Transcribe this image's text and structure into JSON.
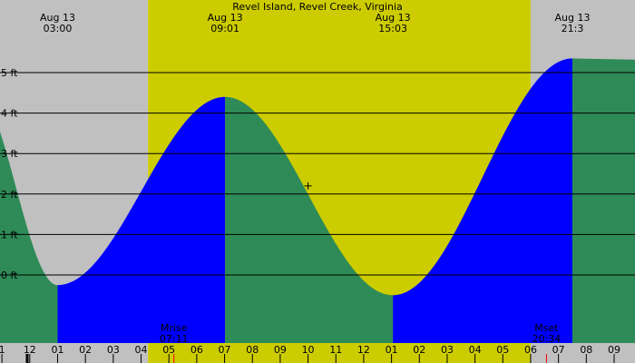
{
  "chart_data": {
    "type": "area",
    "title": "Revel Island, Revel Creek, Virginia",
    "ylim": [
      -1.0,
      5.6
    ],
    "y_ticks": [
      {
        "value": 0,
        "label": "0 ft"
      },
      {
        "value": 1,
        "label": "1 ft"
      },
      {
        "value": 2,
        "label": "2 ft"
      },
      {
        "value": 3,
        "label": "3 ft"
      },
      {
        "value": 4,
        "label": "4 ft"
      },
      {
        "value": 5,
        "label": "5 ft"
      }
    ],
    "x_range_hours": [
      0.93,
      23.75
    ],
    "extremes": [
      {
        "hour": 0.0,
        "height": 4.6,
        "kind": "high"
      },
      {
        "hour": 3.0,
        "height": -0.25,
        "kind": "low",
        "date": "Aug 13",
        "time": "03:00"
      },
      {
        "hour": 9.02,
        "height": 4.4,
        "kind": "high",
        "date": "Aug 13",
        "time": "09:01"
      },
      {
        "hour": 15.05,
        "height": -0.5,
        "kind": "low",
        "date": "Aug 13",
        "time": "15:03"
      },
      {
        "hour": 21.5,
        "height": 5.35,
        "kind": "high",
        "date": "Aug 13",
        "time": "21:3"
      }
    ],
    "day_periods": [
      {
        "start": 0.93,
        "end": 6.25,
        "kind": "night"
      },
      {
        "start": 6.25,
        "end": 20.0,
        "kind": "day"
      },
      {
        "start": 20.0,
        "end": 23.75,
        "kind": "night"
      }
    ],
    "moon_events": [
      {
        "label": "Mrise",
        "time": "07:11",
        "hour": 7.18
      },
      {
        "label": "Mset",
        "time": "20:34",
        "hour": 20.57
      }
    ],
    "current_marker": {
      "hour": 12.0,
      "height": 2.2
    },
    "x_tick_labels": [
      {
        "hour": 1,
        "label": "1"
      },
      {
        "hour": 2,
        "label": "12"
      },
      {
        "hour": 3,
        "label": "01"
      },
      {
        "hour": 4,
        "label": "02"
      },
      {
        "hour": 5,
        "label": "03"
      },
      {
        "hour": 6,
        "label": "04"
      },
      {
        "hour": 7,
        "label": "05"
      },
      {
        "hour": 8,
        "label": "06"
      },
      {
        "hour": 9,
        "label": "07"
      },
      {
        "hour": 10,
        "label": "08"
      },
      {
        "hour": 11,
        "label": "09"
      },
      {
        "hour": 12,
        "label": "10"
      },
      {
        "hour": 13,
        "label": "11"
      },
      {
        "hour": 14,
        "label": "12"
      },
      {
        "hour": 15,
        "label": "01"
      },
      {
        "hour": 16,
        "label": "02"
      },
      {
        "hour": 17,
        "label": "03"
      },
      {
        "hour": 18,
        "label": "04"
      },
      {
        "hour": 19,
        "label": "05"
      },
      {
        "hour": 20,
        "label": "06"
      },
      {
        "hour": 21,
        "label": "07"
      },
      {
        "hour": 22,
        "label": "08"
      },
      {
        "hour": 23,
        "label": "09"
      }
    ],
    "colors": {
      "night": "#c0c0c0",
      "day": "#cccc00",
      "falling": "#2e8b57",
      "rising": "#0000ff",
      "grid": "#000000",
      "text": "#000000",
      "moon_tick": "#ff0000"
    }
  }
}
